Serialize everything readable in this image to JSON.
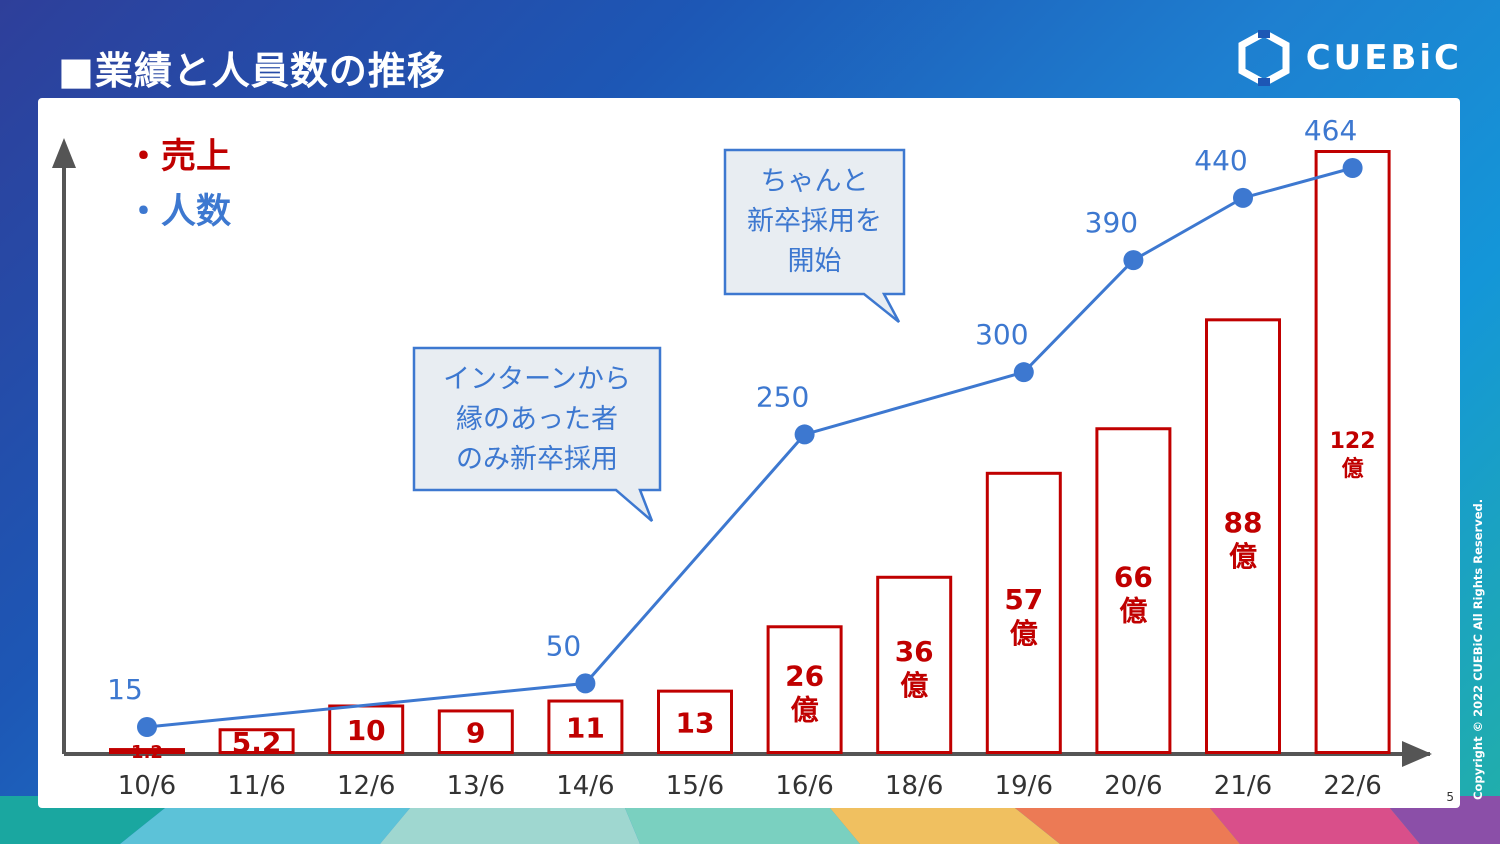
{
  "title": "■業績と人員数の推移",
  "logo": {
    "text": "CUEBiC",
    "icon": "hexagon-logo-icon"
  },
  "copyright": "Copyright © 2022 CUEBiC All Rights Reserved.",
  "page_number": "5",
  "legend": {
    "sales": "・売上",
    "people": "・人数"
  },
  "callouts": [
    {
      "lines": [
        "インターンから",
        "縁のあった者",
        "のみ新卒採用"
      ]
    },
    {
      "lines": [
        "ちゃんと",
        "新卒採用を",
        "開始"
      ]
    }
  ],
  "colors": {
    "sales": "#c00000",
    "people": "#3d78d0",
    "axis": "#555555"
  },
  "chart_data": {
    "type": "bar",
    "categories": [
      "10/6",
      "11/6",
      "12/6",
      "13/6",
      "14/6",
      "15/6",
      "16/6",
      "18/6",
      "19/6",
      "20/6",
      "21/6",
      "22/6"
    ],
    "series": [
      {
        "name": "売上",
        "type": "bar",
        "values": [
          1.2,
          5.2,
          10,
          9,
          11,
          13,
          26,
          36,
          57,
          66,
          88,
          122
        ],
        "labels": [
          "1.2",
          "5.2",
          "10",
          "9",
          "11",
          "13",
          "26億",
          "36億",
          "57億",
          "66億",
          "88億",
          "122億"
        ]
      },
      {
        "name": "人数",
        "type": "line",
        "values": [
          15,
          null,
          null,
          null,
          50,
          null,
          250,
          null,
          300,
          390,
          440,
          464
        ],
        "labels": [
          "15",
          "",
          "",
          "",
          "50",
          "",
          "250",
          "",
          "300",
          "390",
          "440",
          "464"
        ]
      }
    ],
    "grid": false,
    "legend_position": "top-left"
  }
}
